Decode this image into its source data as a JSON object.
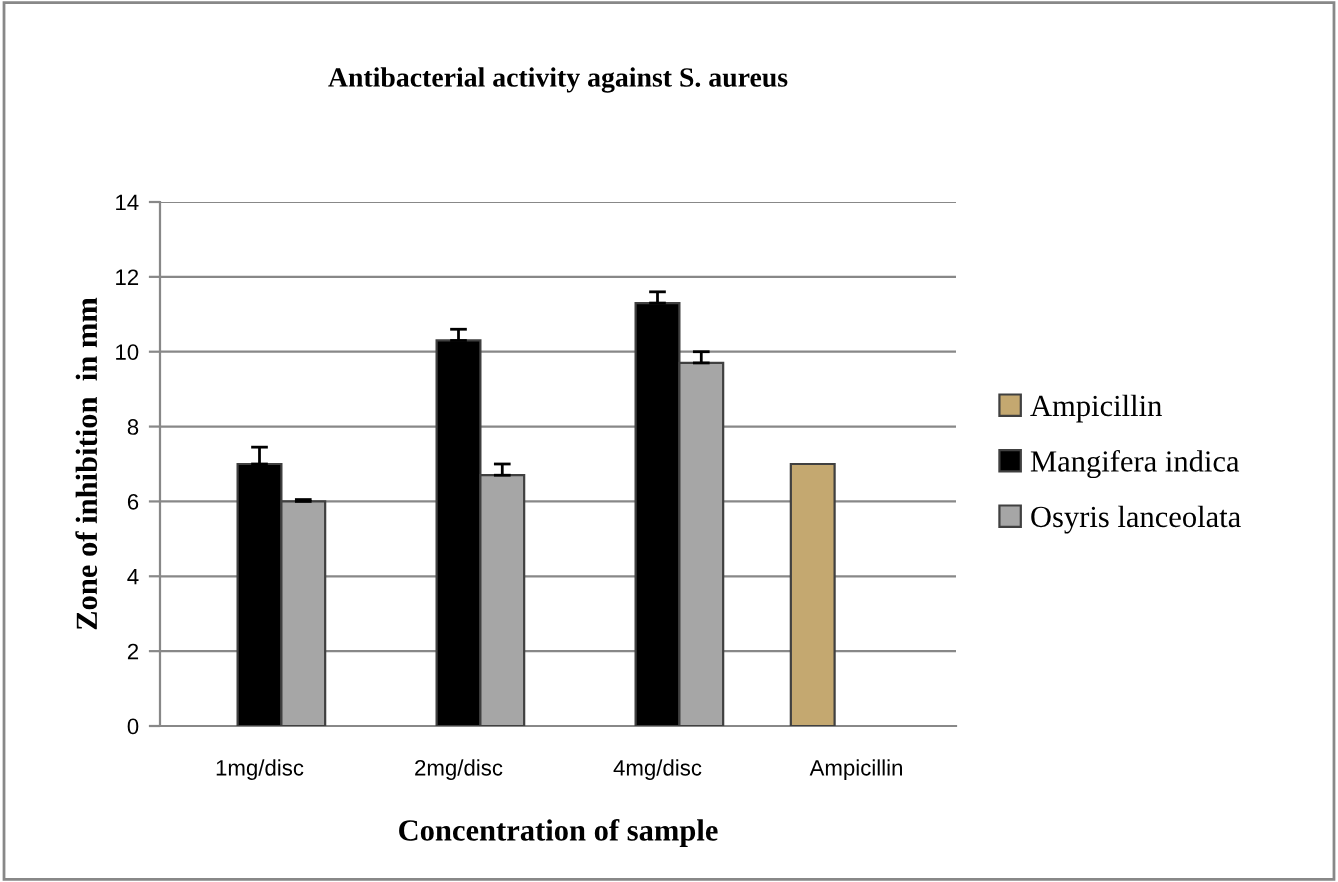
{
  "chart_data": {
    "type": "bar",
    "title": "Antibacterial activity against S. aureus",
    "xlabel": "Concentration of sample",
    "ylabel": "Zone of inhibition  in mm",
    "categories": [
      "1mg/disc",
      "2mg/disc",
      "4mg/disc",
      "Ampicillin"
    ],
    "series": [
      {
        "name": "Ampicillin",
        "color": "#c4a870",
        "values": [
          null,
          null,
          null,
          7.0
        ]
      },
      {
        "name": "Mangifera indica",
        "color": "#000000",
        "values": [
          7.0,
          10.3,
          11.3,
          null
        ],
        "errors": [
          [
            7.0,
            7.45
          ],
          [
            10.3,
            10.6
          ],
          [
            11.3,
            11.6
          ],
          null
        ]
      },
      {
        "name": "Osyris lanceolata",
        "color": "#a6a6a6",
        "values": [
          6.0,
          6.7,
          9.7,
          null
        ],
        "errors": [
          [
            6.0,
            6.05
          ],
          [
            6.7,
            7.0
          ],
          [
            9.7,
            10.0
          ],
          null
        ]
      }
    ],
    "ylim": [
      0,
      14
    ],
    "yticks": [
      0,
      2,
      4,
      6,
      8,
      10,
      12,
      14
    ],
    "grid": "y",
    "legend": "right"
  }
}
